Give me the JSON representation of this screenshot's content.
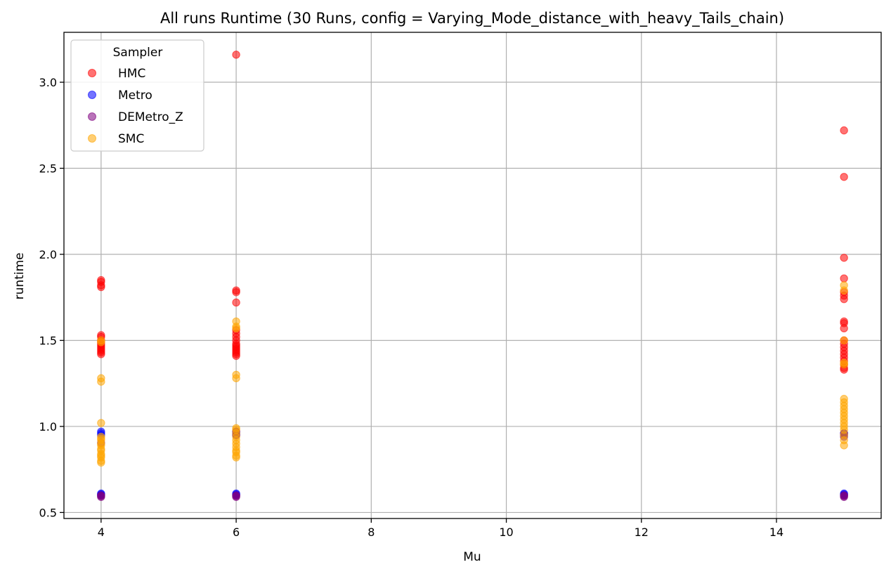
{
  "chart_data": {
    "type": "scatter",
    "title": "All runs Runtime (30 Runs, config = Varying_Mode_distance_with_heavy_Tails_chain)",
    "xlabel": "Mu",
    "ylabel": "runtime",
    "xlim": [
      3.45,
      15.55
    ],
    "ylim": [
      0.465,
      3.29
    ],
    "xticks": [
      4,
      6,
      8,
      10,
      12,
      14
    ],
    "yticks": [
      0.5,
      1.0,
      1.5,
      2.0,
      2.5,
      3.0
    ],
    "xtick_labels": [
      "4",
      "6",
      "8",
      "10",
      "12",
      "14"
    ],
    "ytick_labels": [
      "0.5",
      "1.0",
      "1.5",
      "2.0",
      "2.5",
      "3.0"
    ],
    "grid": true,
    "legend": {
      "title": "Sampler",
      "position": "top-left"
    },
    "series": [
      {
        "name": "HMC",
        "color": "#ff0000",
        "points": [
          [
            4,
            1.85
          ],
          [
            4,
            1.84
          ],
          [
            4,
            1.82
          ],
          [
            4,
            1.81
          ],
          [
            4,
            1.53
          ],
          [
            4,
            1.52
          ],
          [
            4,
            1.5
          ],
          [
            4,
            1.49
          ],
          [
            4,
            1.48
          ],
          [
            4,
            1.47
          ],
          [
            4,
            1.46
          ],
          [
            4,
            1.45
          ],
          [
            4,
            1.44
          ],
          [
            4,
            1.43
          ],
          [
            4,
            1.42
          ],
          [
            6,
            3.16
          ],
          [
            6,
            1.79
          ],
          [
            6,
            1.78
          ],
          [
            6,
            1.72
          ],
          [
            6,
            1.56
          ],
          [
            6,
            1.54
          ],
          [
            6,
            1.52
          ],
          [
            6,
            1.5
          ],
          [
            6,
            1.48
          ],
          [
            6,
            1.47
          ],
          [
            6,
            1.46
          ],
          [
            6,
            1.45
          ],
          [
            6,
            1.44
          ],
          [
            6,
            1.43
          ],
          [
            6,
            1.42
          ],
          [
            6,
            1.41
          ],
          [
            15,
            2.72
          ],
          [
            15,
            2.45
          ],
          [
            15,
            1.98
          ],
          [
            15,
            1.86
          ],
          [
            15,
            1.78
          ],
          [
            15,
            1.76
          ],
          [
            15,
            1.74
          ],
          [
            15,
            1.61
          ],
          [
            15,
            1.6
          ],
          [
            15,
            1.57
          ],
          [
            15,
            1.5
          ],
          [
            15,
            1.48
          ],
          [
            15,
            1.46
          ],
          [
            15,
            1.44
          ],
          [
            15,
            1.42
          ],
          [
            15,
            1.4
          ],
          [
            15,
            1.38
          ],
          [
            15,
            1.36
          ],
          [
            15,
            1.34
          ],
          [
            15,
            1.33
          ]
        ]
      },
      {
        "name": "Metro",
        "color": "#0000ff",
        "points": [
          [
            4,
            0.97
          ],
          [
            4,
            0.96
          ],
          [
            4,
            0.95
          ],
          [
            4,
            0.61
          ],
          [
            4,
            0.6
          ],
          [
            4,
            0.605
          ],
          [
            6,
            0.97
          ],
          [
            6,
            0.96
          ],
          [
            6,
            0.95
          ],
          [
            6,
            0.61
          ],
          [
            6,
            0.6
          ],
          [
            6,
            0.605
          ],
          [
            15,
            0.96
          ],
          [
            15,
            0.95
          ],
          [
            15,
            0.61
          ],
          [
            15,
            0.6
          ],
          [
            15,
            0.605
          ]
        ]
      },
      {
        "name": "DEMetro_Z",
        "color": "#800080",
        "points": [
          [
            4,
            0.59
          ],
          [
            4,
            0.595
          ],
          [
            4,
            0.6
          ],
          [
            4,
            0.905
          ],
          [
            6,
            0.59
          ],
          [
            6,
            0.595
          ],
          [
            6,
            0.6
          ],
          [
            6,
            0.95
          ],
          [
            6,
            0.97
          ],
          [
            15,
            0.59
          ],
          [
            15,
            0.595
          ],
          [
            15,
            0.6
          ],
          [
            15,
            0.94
          ],
          [
            15,
            0.96
          ]
        ]
      },
      {
        "name": "SMC",
        "color": "#ffa500",
        "points": [
          [
            4,
            1.5
          ],
          [
            4,
            1.49
          ],
          [
            4,
            1.28
          ],
          [
            4,
            1.26
          ],
          [
            4,
            1.02
          ],
          [
            4,
            0.94
          ],
          [
            4,
            0.93
          ],
          [
            4,
            0.92
          ],
          [
            4,
            0.9
          ],
          [
            4,
            0.89
          ],
          [
            4,
            0.87
          ],
          [
            4,
            0.86
          ],
          [
            4,
            0.84
          ],
          [
            4,
            0.83
          ],
          [
            4,
            0.82
          ],
          [
            4,
            0.8
          ],
          [
            4,
            0.79
          ],
          [
            6,
            1.61
          ],
          [
            6,
            1.58
          ],
          [
            6,
            1.57
          ],
          [
            6,
            1.3
          ],
          [
            6,
            1.28
          ],
          [
            6,
            0.99
          ],
          [
            6,
            0.98
          ],
          [
            6,
            0.96
          ],
          [
            6,
            0.94
          ],
          [
            6,
            0.92
          ],
          [
            6,
            0.9
          ],
          [
            6,
            0.88
          ],
          [
            6,
            0.86
          ],
          [
            6,
            0.85
          ],
          [
            6,
            0.83
          ],
          [
            6,
            0.82
          ],
          [
            15,
            1.82
          ],
          [
            15,
            1.79
          ],
          [
            15,
            1.5
          ],
          [
            15,
            1.37
          ],
          [
            15,
            1.36
          ],
          [
            15,
            1.16
          ],
          [
            15,
            1.14
          ],
          [
            15,
            1.12
          ],
          [
            15,
            1.1
          ],
          [
            15,
            1.08
          ],
          [
            15,
            1.06
          ],
          [
            15,
            1.04
          ],
          [
            15,
            1.02
          ],
          [
            15,
            1.0
          ],
          [
            15,
            0.98
          ],
          [
            15,
            0.95
          ],
          [
            15,
            0.92
          ],
          [
            15,
            0.89
          ]
        ]
      }
    ]
  }
}
